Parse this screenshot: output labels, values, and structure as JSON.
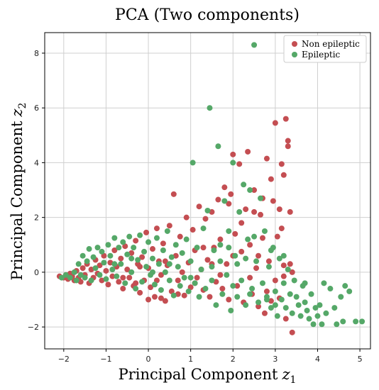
{
  "chart_data": {
    "type": "scatter",
    "title": "PCA (Two components)",
    "xlabel": "Principal Component",
    "xlabel_symbol": "z",
    "xlabel_sub": "1",
    "ylabel": "Principal Component",
    "ylabel_symbol": "z",
    "ylabel_sub": "2",
    "xlim": [
      -2.45,
      5.25
    ],
    "ylim": [
      -2.8,
      8.75
    ],
    "xticks": [
      -2,
      -1,
      0,
      1,
      2,
      3,
      4,
      5
    ],
    "yticks": [
      -2,
      0,
      2,
      4,
      6,
      8
    ],
    "grid": true,
    "legend_position": "top-right",
    "series": [
      {
        "name": "Non epileptic",
        "color": "#c44e52",
        "points": [
          [
            -2.1,
            -0.15
          ],
          [
            -2.0,
            -0.2
          ],
          [
            -1.95,
            -0.1
          ],
          [
            -1.9,
            -0.25
          ],
          [
            -1.85,
            -0.05
          ],
          [
            -1.8,
            -0.15
          ],
          [
            -1.75,
            -0.3
          ],
          [
            -1.7,
            0.05
          ],
          [
            -1.65,
            -0.2
          ],
          [
            -1.6,
            -0.35
          ],
          [
            -1.55,
            0.15
          ],
          [
            -1.5,
            -0.1
          ],
          [
            -1.45,
            0.3
          ],
          [
            -1.4,
            -0.4
          ],
          [
            -1.35,
            0.1
          ],
          [
            -1.3,
            -0.2
          ],
          [
            -1.25,
            0.45
          ],
          [
            -1.2,
            -0.05
          ],
          [
            -1.15,
            0.25
          ],
          [
            -1.1,
            -0.3
          ],
          [
            -1.05,
            0.6
          ],
          [
            -1.0,
            0.05
          ],
          [
            -0.95,
            -0.45
          ],
          [
            -0.9,
            0.35
          ],
          [
            -0.85,
            -0.15
          ],
          [
            -0.8,
            0.8
          ],
          [
            -0.75,
            0.2
          ],
          [
            -0.7,
            -0.35
          ],
          [
            -0.65,
            0.5
          ],
          [
            -0.6,
            -0.6
          ],
          [
            -0.55,
            0.95
          ],
          [
            -0.5,
            0.1
          ],
          [
            -0.45,
            -0.2
          ],
          [
            -0.4,
            0.7
          ],
          [
            -0.35,
            -0.5
          ],
          [
            -0.3,
            1.15
          ],
          [
            -0.25,
            0.3
          ],
          [
            -0.2,
            -0.75
          ],
          [
            -0.15,
            0.55
          ],
          [
            -0.1,
            -0.3
          ],
          [
            -0.05,
            1.45
          ],
          [
            0.0,
            0.15
          ],
          [
            0.05,
            -0.55
          ],
          [
            0.1,
            0.85
          ],
          [
            0.15,
            -0.9
          ],
          [
            0.2,
            1.6
          ],
          [
            0.25,
            0.4
          ],
          [
            0.3,
            -0.1
          ],
          [
            0.35,
            1.05
          ],
          [
            0.4,
            -1.05
          ],
          [
            0.45,
            0.25
          ],
          [
            0.5,
            1.7
          ],
          [
            0.55,
            -0.7
          ],
          [
            0.6,
            2.85
          ],
          [
            0.65,
            0.6
          ],
          [
            0.7,
            -0.3
          ],
          [
            0.75,
            1.3
          ],
          [
            0.8,
            0.0
          ],
          [
            0.85,
            -0.85
          ],
          [
            0.9,
            2.0
          ],
          [
            0.95,
            0.35
          ],
          [
            1.0,
            -0.55
          ],
          [
            1.05,
            1.55
          ],
          [
            1.1,
            0.8
          ],
          [
            1.15,
            -0.2
          ],
          [
            1.2,
            2.4
          ],
          [
            1.25,
            0.1
          ],
          [
            1.3,
            -0.65
          ],
          [
            1.35,
            1.95
          ],
          [
            1.4,
            0.45
          ],
          [
            1.45,
            -0.9
          ],
          [
            1.5,
            2.2
          ],
          [
            1.55,
            0.9
          ],
          [
            1.6,
            -0.35
          ],
          [
            1.65,
            2.65
          ],
          [
            1.7,
            1.2
          ],
          [
            1.75,
            -0.6
          ],
          [
            1.8,
            3.1
          ],
          [
            1.85,
            0.3
          ],
          [
            1.9,
            -1.0
          ],
          [
            1.95,
            2.85
          ],
          [
            2.0,
            4.3
          ],
          [
            2.05,
            1.4
          ],
          [
            2.1,
            -0.5
          ],
          [
            2.15,
            3.95
          ],
          [
            2.2,
            0.75
          ],
          [
            2.25,
            -1.1
          ],
          [
            2.3,
            2.3
          ],
          [
            2.35,
            4.4
          ],
          [
            2.4,
            1.0
          ],
          [
            2.45,
            -0.8
          ],
          [
            2.5,
            3.0
          ],
          [
            2.55,
            0.15
          ],
          [
            2.6,
            -1.25
          ],
          [
            2.65,
            2.1
          ],
          [
            2.7,
            1.25
          ],
          [
            2.75,
            -1.5
          ],
          [
            2.8,
            4.15
          ],
          [
            2.85,
            0.4
          ],
          [
            2.9,
            -1.05
          ],
          [
            2.95,
            2.6
          ],
          [
            3.0,
            5.45
          ],
          [
            3.05,
            1.3
          ],
          [
            3.1,
            -0.95
          ],
          [
            3.15,
            3.95
          ],
          [
            3.2,
            0.25
          ],
          [
            3.25,
            -1.7
          ],
          [
            3.3,
            4.8
          ],
          [
            3.35,
            2.2
          ],
          [
            3.4,
            -2.2
          ],
          [
            3.0,
            -0.3
          ],
          [
            2.8,
            -0.7
          ],
          [
            2.6,
            0.6
          ],
          [
            3.2,
            -0.15
          ],
          [
            2.4,
            -0.2
          ],
          [
            2.2,
            1.8
          ],
          [
            2.0,
            0.6
          ],
          [
            1.9,
            2.5
          ],
          [
            1.7,
            -0.1
          ],
          [
            1.5,
            0.3
          ],
          [
            -0.6,
            -0.2
          ],
          [
            -0.3,
            -0.4
          ],
          [
            0.2,
            -0.3
          ],
          [
            0.4,
            0.4
          ],
          [
            0.7,
            -0.8
          ],
          [
            1.1,
            -0.4
          ],
          [
            1.3,
            0.9
          ],
          [
            0.0,
            -1.0
          ],
          [
            0.3,
            -0.95
          ],
          [
            -0.2,
            0.2
          ],
          [
            3.25,
            5.6
          ],
          [
            3.3,
            4.6
          ],
          [
            2.9,
            3.4
          ],
          [
            3.1,
            2.3
          ],
          [
            3.15,
            1.6
          ],
          [
            2.7,
            2.7
          ],
          [
            2.5,
            2.2
          ],
          [
            3.2,
            3.55
          ],
          [
            3.35,
            0.3
          ],
          [
            3.4,
            0.0
          ]
        ]
      },
      {
        "name": "Epileptic",
        "color": "#55a868",
        "points": [
          [
            -2.05,
            -0.2
          ],
          [
            -1.95,
            -0.1
          ],
          [
            -1.85,
            -0.2
          ],
          [
            -1.75,
            0.0
          ],
          [
            -1.7,
            -0.3
          ],
          [
            -1.65,
            0.3
          ],
          [
            -1.6,
            -0.1
          ],
          [
            -1.55,
            0.6
          ],
          [
            -1.5,
            -0.2
          ],
          [
            -1.45,
            0.4
          ],
          [
            -1.4,
            0.85
          ],
          [
            -1.35,
            -0.3
          ],
          [
            -1.3,
            0.55
          ],
          [
            -1.25,
            0.15
          ],
          [
            -1.2,
            0.9
          ],
          [
            -1.15,
            -0.1
          ],
          [
            -1.1,
            0.75
          ],
          [
            -1.05,
            0.35
          ],
          [
            -1.0,
            -0.25
          ],
          [
            -0.95,
            1.0
          ],
          [
            -0.9,
            0.6
          ],
          [
            -0.85,
            0.1
          ],
          [
            -0.8,
            1.25
          ],
          [
            -0.75,
            -0.15
          ],
          [
            -0.7,
            0.9
          ],
          [
            -0.65,
            0.3
          ],
          [
            -0.6,
            1.1
          ],
          [
            -0.55,
            -0.4
          ],
          [
            -0.5,
            0.65
          ],
          [
            -0.45,
            1.3
          ],
          [
            -0.4,
            0.0
          ],
          [
            -0.35,
            0.9
          ],
          [
            -0.3,
            -0.6
          ],
          [
            -0.25,
            0.45
          ],
          [
            -0.2,
            1.35
          ],
          [
            -0.15,
            -0.35
          ],
          [
            -0.1,
            0.75
          ],
          [
            -0.05,
            0.2
          ],
          [
            0.0,
            1.1
          ],
          [
            0.05,
            -0.1
          ],
          [
            0.1,
            0.5
          ],
          [
            0.15,
            -0.45
          ],
          [
            0.2,
            1.25
          ],
          [
            0.25,
            0.3
          ],
          [
            0.3,
            -0.65
          ],
          [
            0.35,
            0.8
          ],
          [
            0.4,
            0.0
          ],
          [
            0.45,
            1.5
          ],
          [
            0.5,
            -0.3
          ],
          [
            0.55,
            0.55
          ],
          [
            0.6,
            -0.85
          ],
          [
            0.65,
            1.0
          ],
          [
            0.7,
            0.2
          ],
          [
            0.75,
            -0.5
          ],
          [
            0.8,
            0.7
          ],
          [
            0.85,
            -0.2
          ],
          [
            0.9,
            1.2
          ],
          [
            0.95,
            -0.7
          ],
          [
            1.0,
            0.4
          ],
          [
            1.05,
            4.0
          ],
          [
            1.1,
            -0.4
          ],
          [
            1.15,
            0.9
          ],
          [
            1.2,
            -0.9
          ],
          [
            1.25,
            0.1
          ],
          [
            1.3,
            1.6
          ],
          [
            1.35,
            -0.6
          ],
          [
            1.4,
            2.25
          ],
          [
            1.45,
            6.0
          ],
          [
            1.5,
            -0.3
          ],
          [
            1.55,
            0.8
          ],
          [
            1.6,
            -1.2
          ],
          [
            1.65,
            4.6
          ],
          [
            1.7,
            0.4
          ],
          [
            1.75,
            -0.8
          ],
          [
            1.8,
            2.6
          ],
          [
            1.85,
            -0.1
          ],
          [
            1.9,
            1.5
          ],
          [
            1.95,
            -1.4
          ],
          [
            2.0,
            4.0
          ],
          [
            2.05,
            0.6
          ],
          [
            2.1,
            -0.9
          ],
          [
            2.15,
            2.2
          ],
          [
            2.2,
            -0.3
          ],
          [
            2.25,
            3.2
          ],
          [
            2.3,
            -1.2
          ],
          [
            2.35,
            1.2
          ],
          [
            2.4,
            3.0
          ],
          [
            2.45,
            -0.6
          ],
          [
            2.5,
            8.3
          ],
          [
            2.55,
            0.4
          ],
          [
            2.6,
            -1.1
          ],
          [
            2.65,
            2.7
          ],
          [
            2.7,
            -0.4
          ],
          [
            2.75,
            1.5
          ],
          [
            2.8,
            -0.9
          ],
          [
            2.85,
            0.2
          ],
          [
            2.9,
            -1.3
          ],
          [
            2.95,
            0.9
          ],
          [
            3.0,
            -0.7
          ],
          [
            3.05,
            -1.6
          ],
          [
            3.1,
            0.5
          ],
          [
            3.15,
            -1.0
          ],
          [
            3.2,
            -0.4
          ],
          [
            3.25,
            -1.3
          ],
          [
            3.3,
            0.1
          ],
          [
            3.35,
            -0.8
          ],
          [
            3.4,
            -1.5
          ],
          [
            3.45,
            -0.3
          ],
          [
            3.5,
            -0.9
          ],
          [
            3.55,
            -1.2
          ],
          [
            3.6,
            -1.6
          ],
          [
            3.65,
            -0.5
          ],
          [
            3.7,
            -1.1
          ],
          [
            3.75,
            -1.4
          ],
          [
            3.8,
            -1.7
          ],
          [
            3.85,
            -0.8
          ],
          [
            3.9,
            -1.9
          ],
          [
            3.95,
            -1.3
          ],
          [
            4.0,
            -1.6
          ],
          [
            4.05,
            -1.2
          ],
          [
            4.1,
            -1.9
          ],
          [
            4.15,
            -0.4
          ],
          [
            4.2,
            -1.5
          ],
          [
            4.3,
            -0.6
          ],
          [
            4.4,
            -1.3
          ],
          [
            4.45,
            -1.9
          ],
          [
            4.55,
            -0.9
          ],
          [
            4.6,
            -1.8
          ],
          [
            4.75,
            -0.7
          ],
          [
            4.9,
            -1.8
          ],
          [
            5.05,
            -1.8
          ],
          [
            4.65,
            -0.5
          ],
          [
            3.7,
            -0.4
          ],
          [
            3.2,
            0.6
          ],
          [
            2.9,
            0.8
          ],
          [
            2.5,
            1.3
          ],
          [
            2.3,
            0.5
          ],
          [
            2.1,
            0.3
          ],
          [
            1.9,
            0.9
          ],
          [
            1.7,
            1.0
          ],
          [
            -0.8,
            0.3
          ],
          [
            -0.4,
            0.5
          ],
          [
            0.1,
            0.0
          ],
          [
            0.5,
            0.3
          ],
          [
            1.0,
            -0.2
          ],
          [
            1.5,
            0.2
          ],
          [
            2.0,
            -0.5
          ],
          [
            2.4,
            -0.8
          ],
          [
            2.8,
            -1.0
          ],
          [
            3.0,
            -1.2
          ]
        ]
      }
    ]
  }
}
